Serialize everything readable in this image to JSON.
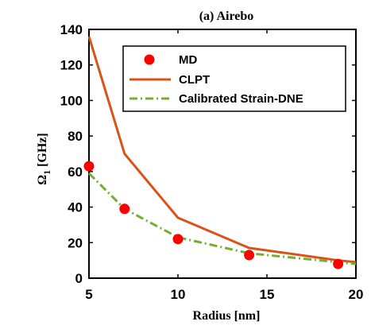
{
  "chart_data": {
    "type": "line",
    "title": "(a) Airebo",
    "xlabel": "Radius [nm]",
    "ylabel": "Ω",
    "ylabel_sub": "1",
    "ylabel_unit": " [GHz]",
    "xlim": [
      5,
      20
    ],
    "ylim": [
      0,
      140
    ],
    "xticks": [
      5,
      10,
      15,
      20
    ],
    "yticks": [
      0,
      20,
      40,
      60,
      80,
      100,
      120,
      140
    ],
    "grid": false,
    "legend_position": "top-right",
    "series": [
      {
        "name": "MD",
        "style": "markers",
        "color": "#ff0000",
        "x": [
          5,
          7,
          10,
          14,
          19
        ],
        "y": [
          63,
          39,
          22,
          13,
          8
        ]
      },
      {
        "name": "CLPT",
        "style": "solid",
        "color": "#d95319",
        "x": [
          5,
          7,
          10,
          14,
          19,
          20
        ],
        "y": [
          136,
          70,
          34,
          17,
          10,
          9
        ]
      },
      {
        "name": "Calibrated Strain-DNE",
        "style": "dashdot",
        "color": "#77ac30",
        "x": [
          5,
          7,
          10,
          14,
          19,
          20
        ],
        "y": [
          59,
          39,
          23,
          14,
          9,
          8
        ]
      }
    ]
  }
}
